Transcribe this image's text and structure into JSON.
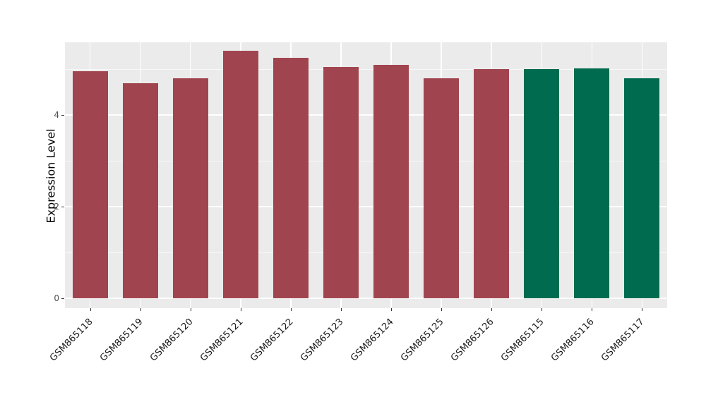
{
  "chart_data": {
    "type": "bar",
    "title": "",
    "xlabel": "",
    "ylabel": "Expression Level",
    "ylim": [
      0,
      5.6
    ],
    "yticks": [
      0,
      2,
      4
    ],
    "yticks_minor": [
      1,
      3,
      5
    ],
    "grid": "on",
    "legend": "none",
    "panel_background": "#EBEBEB",
    "palette": {
      "maroon": "#A0454F",
      "green": "#006B4E"
    },
    "bars": [
      {
        "label": "GSM865118",
        "value": 4.95,
        "color": "#A0454F"
      },
      {
        "label": "GSM865119",
        "value": 4.7,
        "color": "#A0454F"
      },
      {
        "label": "GSM865120",
        "value": 4.8,
        "color": "#A0454F"
      },
      {
        "label": "GSM865121",
        "value": 5.4,
        "color": "#A0454F"
      },
      {
        "label": "GSM865122",
        "value": 5.25,
        "color": "#A0454F"
      },
      {
        "label": "GSM865123",
        "value": 5.05,
        "color": "#A0454F"
      },
      {
        "label": "GSM865124",
        "value": 5.1,
        "color": "#A0454F"
      },
      {
        "label": "GSM865125",
        "value": 4.8,
        "color": "#A0454F"
      },
      {
        "label": "GSM865126",
        "value": 5.0,
        "color": "#A0454F"
      },
      {
        "label": "GSM865115",
        "value": 5.0,
        "color": "#006B4E"
      },
      {
        "label": "GSM865116",
        "value": 5.02,
        "color": "#006B4E"
      },
      {
        "label": "GSM865117",
        "value": 4.8,
        "color": "#006B4E"
      }
    ]
  }
}
